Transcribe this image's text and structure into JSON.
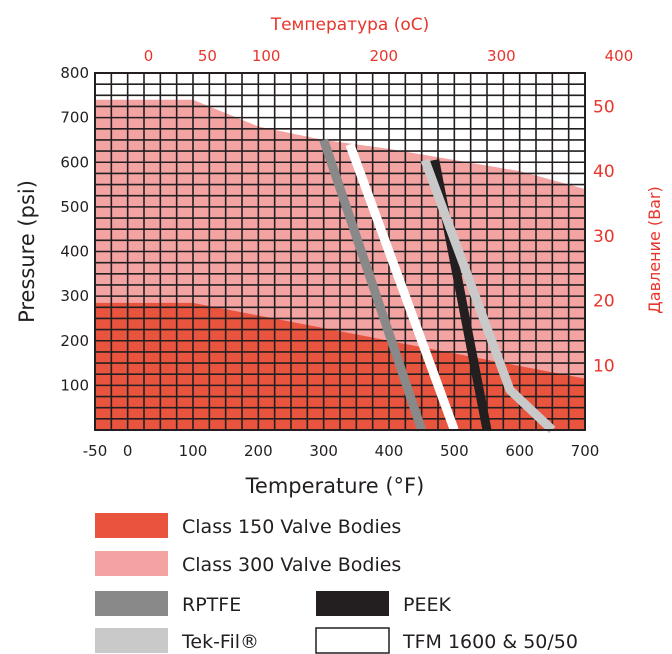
{
  "chart_data": {
    "type": "line",
    "title": "Температура (oC)",
    "xlabel": "Temperature (°F)",
    "ylabel": "Pressure (psi)",
    "ylabel_right": "Давление (Bar)",
    "xlim": [
      -50,
      700
    ],
    "ylim": [
      0,
      800
    ],
    "x_ticks": [
      "-50",
      "0",
      "100",
      "200",
      "300",
      "400",
      "500",
      "600",
      "700"
    ],
    "y_ticks": [
      "100",
      "200",
      "300",
      "400",
      "500",
      "600",
      "700",
      "800"
    ],
    "top_axis": {
      "unit": "oC",
      "range": [
        -45.6,
        371.1
      ],
      "ticks": [
        "0",
        "50",
        "100",
        "200",
        "300",
        "400"
      ],
      "tick_values": [
        0,
        50,
        100,
        200,
        300,
        400
      ]
    },
    "right_axis": {
      "unit": "Bar",
      "range": [
        0,
        55.2
      ],
      "ticks": [
        "10",
        "20",
        "30",
        "40",
        "50"
      ],
      "tick_values": [
        10,
        20,
        30,
        40,
        50
      ]
    },
    "grid": true,
    "legend_position": "bottom",
    "colors": {
      "class150": "#e8543e",
      "class300": "#f3a3a2",
      "rptfe": "#898989",
      "peek": "#231f20",
      "tekfil": "#c9c9c9",
      "tfm": "#ffffff",
      "accent": "#e8352b"
    },
    "series": [
      {
        "name": "Class 150 Valve Bodies",
        "kind": "area",
        "x": [
          -50,
          100,
          700
        ],
        "y": [
          285,
          285,
          115
        ]
      },
      {
        "name": "Class 300 Valve Bodies",
        "kind": "area",
        "x": [
          -50,
          100,
          200,
          300,
          400,
          500,
          600,
          700
        ],
        "y": [
          740,
          740,
          680,
          650,
          630,
          605,
          580,
          540
        ]
      },
      {
        "name": "RPTFE",
        "kind": "line",
        "x": [
          300,
          450
        ],
        "y": [
          650,
          0
        ]
      },
      {
        "name": "TFM 1600 & 50/50",
        "kind": "line",
        "x": [
          340,
          500
        ],
        "y": [
          640,
          0
        ]
      },
      {
        "name": "PEEK",
        "kind": "line",
        "x": [
          470,
          550
        ],
        "y": [
          605,
          0
        ]
      },
      {
        "name": "Tek-Fil®",
        "kind": "line",
        "x": [
          455,
          585,
          650
        ],
        "y": [
          605,
          90,
          0
        ]
      }
    ],
    "legend": [
      {
        "label": "Class 150 Valve Bodies",
        "color_key": "class150"
      },
      {
        "label": "Class 300 Valve Bodies",
        "color_key": "class300"
      },
      {
        "label": "RPTFE",
        "color_key": "rptfe"
      },
      {
        "label": "PEEK",
        "color_key": "peek"
      },
      {
        "label": "Tek-Fil®",
        "color_key": "tekfil"
      },
      {
        "label": "TFM 1600 & 50/50",
        "color_key": "tfm"
      }
    ]
  }
}
